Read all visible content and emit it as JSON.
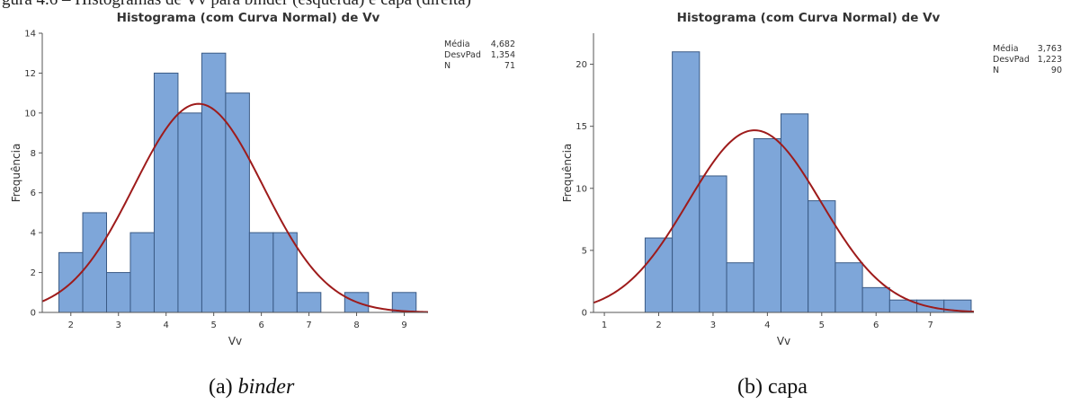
{
  "top_text": "gura 4.6 – Histogramas de Vv para binder (esquerda) e capa (direita)",
  "colors": {
    "bar_fill": "#7ea6d9",
    "bar_stroke": "#3a5a85",
    "curve": "#9e1b1b",
    "axis": "#555555"
  },
  "chart_data": [
    {
      "type": "bar",
      "title": "Histograma (com Curva Normal) de Vv",
      "xlabel": "Vv",
      "ylabel": "Frequência",
      "xlim": [
        1.4,
        9.5
      ],
      "ylim": [
        0,
        14
      ],
      "x_ticks": [
        2,
        3,
        4,
        5,
        6,
        7,
        8,
        9
      ],
      "y_ticks": [
        0,
        2,
        4,
        6,
        8,
        10,
        12,
        14
      ],
      "bin_edges": [
        1.75,
        2.25,
        2.75,
        3.25,
        3.75,
        4.25,
        4.75,
        5.25,
        5.75,
        6.25,
        6.75,
        7.25,
        7.75,
        8.25,
        8.75,
        9.25
      ],
      "values": [
        3,
        5,
        2,
        4,
        12,
        10,
        13,
        11,
        4,
        4,
        1,
        0,
        1,
        0,
        1
      ],
      "normal_curve": {
        "mean": 4.682,
        "sd": 1.354,
        "n": 71
      },
      "stats": [
        {
          "label": "Média",
          "value": "4,682"
        },
        {
          "label": "DesvPad",
          "value": "1,354"
        },
        {
          "label": "N",
          "value": "71"
        }
      ],
      "grid": false
    },
    {
      "type": "bar",
      "title": "Histograma (com Curva Normal) de Vv",
      "xlabel": "Vv",
      "ylabel": "Frequência",
      "xlim": [
        0.8,
        7.8
      ],
      "ylim": [
        0,
        22.5
      ],
      "x_ticks": [
        1,
        2,
        3,
        4,
        5,
        6,
        7
      ],
      "y_ticks": [
        0,
        5,
        10,
        15,
        20
      ],
      "bin_edges": [
        1.75,
        2.25,
        2.75,
        3.25,
        3.75,
        4.25,
        4.75,
        5.25,
        5.75,
        6.25,
        6.75,
        7.25,
        7.75
      ],
      "values": [
        6,
        21,
        11,
        4,
        14,
        16,
        9,
        4,
        2,
        1,
        1,
        1
      ],
      "normal_curve": {
        "mean": 3.763,
        "sd": 1.223,
        "n": 90
      },
      "stats": [
        {
          "label": "Média",
          "value": "3,763"
        },
        {
          "label": "DesvPad",
          "value": "1,223"
        },
        {
          "label": "N",
          "value": "90"
        }
      ],
      "grid": false
    }
  ],
  "captions": [
    {
      "prefix": "(a) ",
      "emph": "binder"
    },
    {
      "prefix": "(b) capa",
      "emph": ""
    }
  ]
}
